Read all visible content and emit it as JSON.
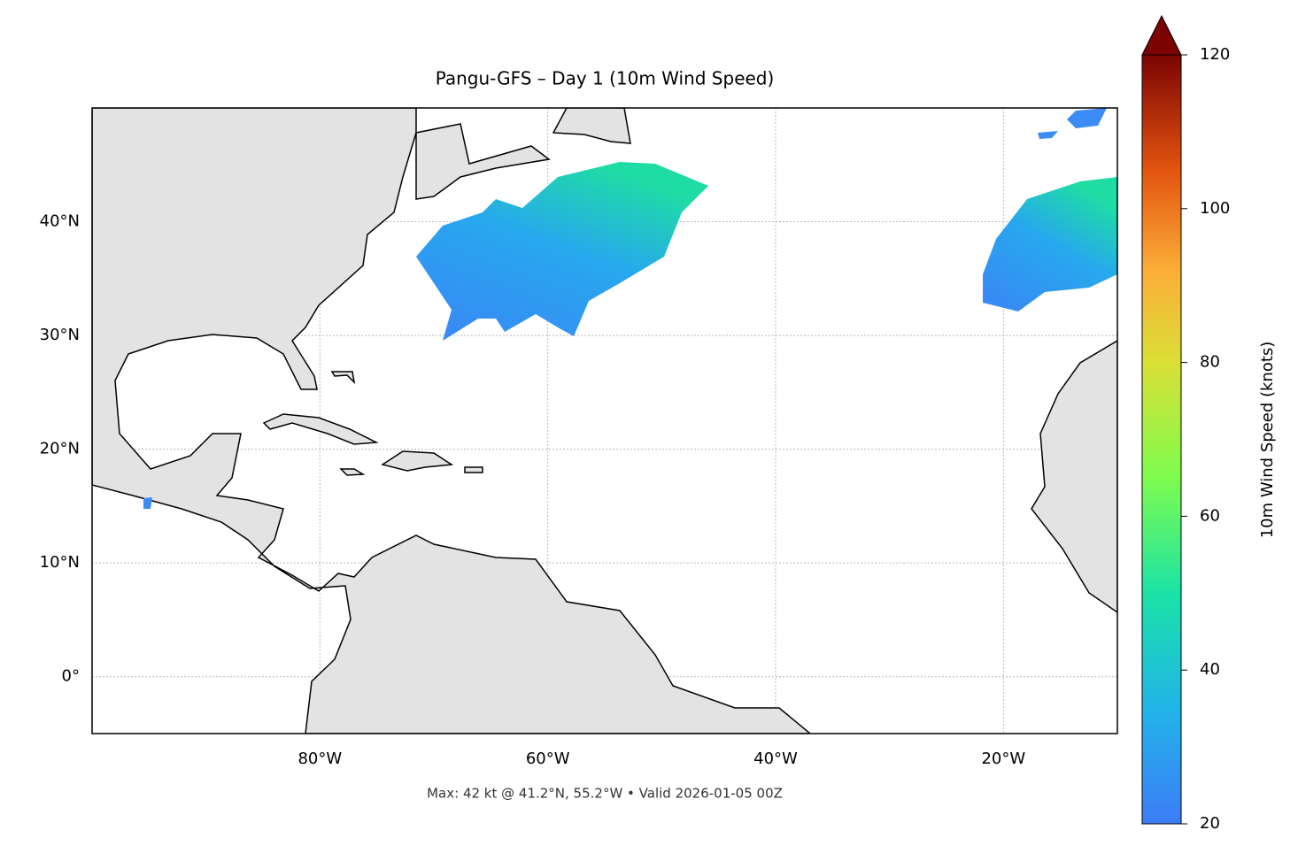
{
  "map": {
    "title": "Pangu-GFS – Day 1 (10m Wind Speed)",
    "lon_range": [
      -100,
      -10
    ],
    "lat_range": [
      -5,
      50
    ],
    "lon_ticks": [
      {
        "value": -80,
        "label": "80°W"
      },
      {
        "value": -60,
        "label": "60°W"
      },
      {
        "value": -40,
        "label": "40°W"
      },
      {
        "value": -20,
        "label": "20°W"
      }
    ],
    "lat_ticks": [
      {
        "value": 0,
        "label": "0°"
      },
      {
        "value": 10,
        "label": "10°N"
      },
      {
        "value": 20,
        "label": "20°N"
      },
      {
        "value": 30,
        "label": "30°N"
      },
      {
        "value": 40,
        "label": "40°N"
      }
    ],
    "caption": "Max: 42 kt @ 41.2°N, 55.2°W • Valid 2026-01-05 00Z"
  },
  "colorbar": {
    "label": "10m Wind Speed (knots)",
    "range": [
      20,
      120
    ],
    "ticks": [
      20,
      40,
      60,
      80,
      100,
      120
    ]
  }
}
